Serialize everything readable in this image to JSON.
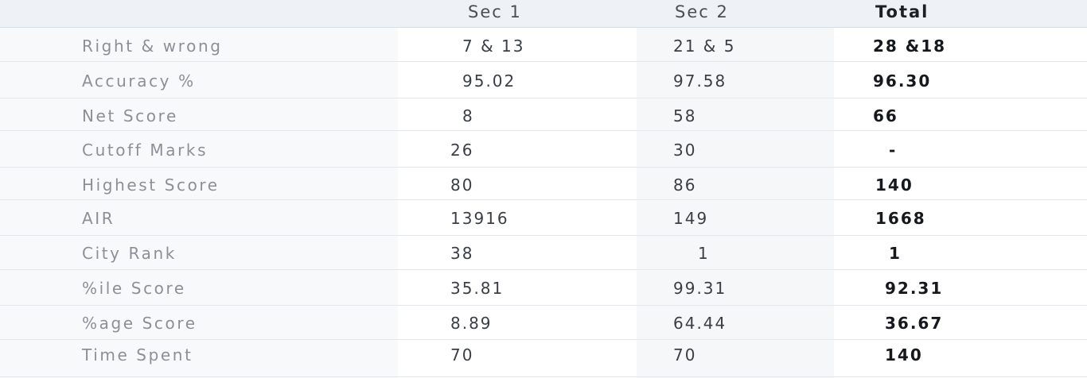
{
  "header": {
    "sec1": "Sec 1",
    "sec2": "Sec 2",
    "total": "Total"
  },
  "rows": [
    {
      "label": "Right & wrong",
      "sec1": "7 & 13",
      "sec2": "21 & 5",
      "total": "28 &18"
    },
    {
      "label": "Accuracy %",
      "sec1": "95.02",
      "sec2": "97.58",
      "total": "96.30"
    },
    {
      "label": "Net Score",
      "sec1": "8",
      "sec2": "58",
      "total": "66"
    },
    {
      "label": "Cutoff Marks",
      "sec1": "26",
      "sec2": "30",
      "total": "-"
    },
    {
      "label": "Highest Score",
      "sec1": "80",
      "sec2": "86",
      "total": "140"
    },
    {
      "label": "AIR",
      "sec1": "13916",
      "sec2": "149",
      "total": "1668"
    },
    {
      "label": "City Rank",
      "sec1": "38",
      "sec2": "1",
      "total": "1"
    },
    {
      "label": "%ile Score",
      "sec1": "35.81",
      "sec2": "99.31",
      "total": "92.31"
    },
    {
      "label": "%age Score",
      "sec1": "8.89",
      "sec2": "64.44",
      "total": "36.67"
    },
    {
      "label": "Time Spent",
      "sec1": "70",
      "sec2": "70",
      "total": "140"
    }
  ],
  "colors": {
    "header_bg": "#eef2f7",
    "label_text": "#8b9097",
    "value_text": "#3a3e45",
    "total_text": "#15181c"
  }
}
